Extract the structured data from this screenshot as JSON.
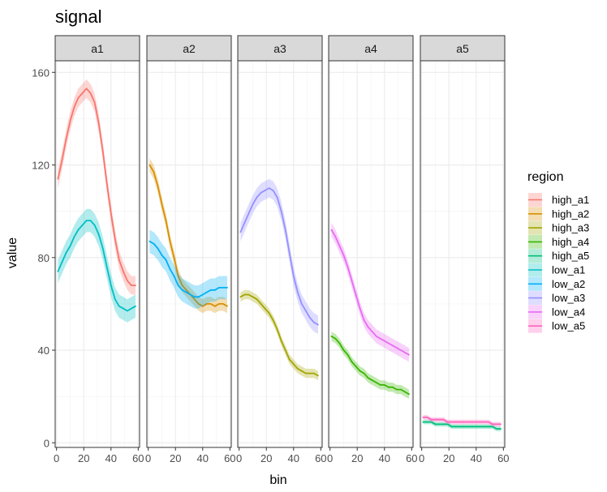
{
  "chart_data": {
    "type": "line",
    "title": "signal",
    "xlabel": "bin",
    "ylabel": "value",
    "xlim": [
      -1,
      61
    ],
    "ylim": [
      -2,
      165
    ],
    "x_ticks": [
      0,
      20,
      40,
      60
    ],
    "y_ticks": [
      0,
      40,
      80,
      120,
      160
    ],
    "grid": true,
    "legend_title": "region",
    "legend_position": "right",
    "x": [
      1,
      4,
      7,
      10,
      13,
      16,
      19,
      22,
      25,
      28,
      31,
      34,
      37,
      40,
      43,
      46,
      49,
      52,
      55,
      58
    ],
    "panels": [
      "a1",
      "a2",
      "a3",
      "a4",
      "a5"
    ],
    "series": [
      {
        "name": "high_a1",
        "panel": "a1",
        "color": "#F8766D",
        "values": [
          114,
          122,
          131,
          139,
          145,
          149,
          151,
          153,
          151,
          147,
          138,
          126,
          112,
          99,
          88,
          79,
          74,
          70,
          68,
          68
        ],
        "band": 4
      },
      {
        "name": "high_a2",
        "panel": "a2",
        "color": "#D89000",
        "values": [
          120,
          117,
          111,
          103,
          96,
          87,
          80,
          72,
          68,
          66,
          64,
          62,
          60,
          59,
          60,
          60,
          59,
          60,
          60,
          59
        ],
        "band": 3
      },
      {
        "name": "high_a3",
        "panel": "a3",
        "color": "#A3A500",
        "values": [
          63,
          64,
          64,
          63,
          62,
          60,
          58,
          56,
          53,
          49,
          44,
          40,
          36,
          34,
          32,
          31,
          30,
          30,
          30,
          29
        ],
        "band": 2
      },
      {
        "name": "high_a4",
        "panel": "a4",
        "color": "#39B600",
        "values": [
          46,
          45,
          43,
          40,
          38,
          35,
          33,
          31,
          30,
          28,
          27,
          26,
          25,
          25,
          24,
          24,
          23,
          23,
          22,
          21
        ],
        "band": 2
      },
      {
        "name": "high_a5",
        "panel": "a5",
        "color": "#00BF7D",
        "values": [
          9,
          9,
          9,
          8,
          8,
          8,
          8,
          7,
          7,
          7,
          7,
          7,
          7,
          7,
          7,
          7,
          7,
          7,
          6,
          6
        ],
        "band": 1
      },
      {
        "name": "low_a1",
        "panel": "a1",
        "color": "#00BFC4",
        "values": [
          74,
          78,
          82,
          85,
          89,
          92,
          94,
          96,
          96,
          94,
          90,
          84,
          76,
          68,
          62,
          59,
          58,
          57,
          58,
          59
        ],
        "band": 5
      },
      {
        "name": "low_a2",
        "panel": "a2",
        "color": "#00B0F6",
        "values": [
          87,
          86,
          84,
          81,
          79,
          75,
          72,
          68,
          66,
          65,
          64,
          63,
          63,
          64,
          65,
          66,
          66,
          67,
          67,
          67
        ],
        "band": 5
      },
      {
        "name": "low_a3",
        "panel": "a3",
        "color": "#9590FF",
        "values": [
          91,
          95,
          99,
          103,
          106,
          108,
          109,
          110,
          109,
          106,
          100,
          92,
          82,
          72,
          65,
          60,
          57,
          54,
          52,
          51
        ],
        "band": 4
      },
      {
        "name": "low_a4",
        "panel": "a4",
        "color": "#E76BF3",
        "values": [
          92,
          89,
          85,
          81,
          76,
          70,
          64,
          58,
          53,
          50,
          48,
          46,
          45,
          44,
          43,
          42,
          41,
          40,
          39,
          38
        ],
        "band": 3
      },
      {
        "name": "low_a5",
        "panel": "a5",
        "color": "#FF62BC",
        "values": [
          11,
          11,
          10,
          10,
          10,
          10,
          9,
          9,
          9,
          9,
          9,
          9,
          9,
          9,
          9,
          9,
          9,
          8,
          8,
          8
        ],
        "band": 1
      }
    ]
  }
}
